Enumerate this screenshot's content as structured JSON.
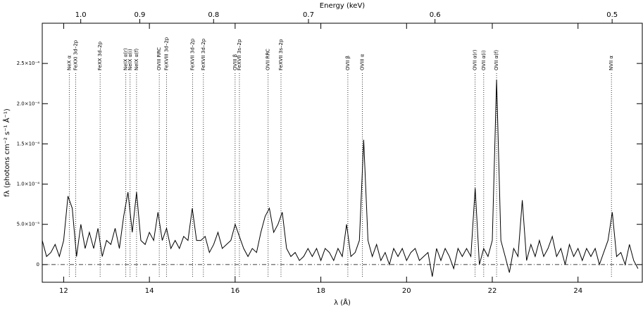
{
  "chart_data": {
    "type": "line",
    "xlabel": "λ (Å)",
    "ylabel": "fλ (photons cm⁻² s⁻¹ Å⁻¹)",
    "x2label": "Energy (keV)",
    "color": "#000000",
    "xlim": [
      11.5,
      25.5
    ],
    "xticks": [
      12,
      14,
      16,
      18,
      20,
      22,
      24
    ],
    "ylim": [
      -2.2e-05,
      0.0003
    ],
    "yticks": [
      0,
      {
        "value": 5e-05,
        "label": "5.0×10⁻⁵"
      },
      {
        "value": 0.0001,
        "label": "1.0×10⁻⁴"
      },
      {
        "value": 0.00015,
        "label": "1.5×10⁻⁴"
      },
      {
        "value": 0.0002,
        "label": "2.0×10⁻⁴"
      },
      {
        "value": 0.00025,
        "label": "2.5×10⁻⁴"
      }
    ],
    "x2ticks": [
      {
        "value": 1.0,
        "label": "1.0"
      },
      0.9,
      0.8,
      0.7,
      0.6,
      0.5
    ],
    "annotations": [
      {
        "label": "NeX α",
        "x": 12.13
      },
      {
        "label": "FeXXI 3d–2p",
        "x": 12.28
      },
      {
        "label": "FeXX 3d–2p",
        "x": 12.85
      },
      {
        "label": "NeIX α(r)",
        "x": 13.45
      },
      {
        "label": "NeIX α(i)",
        "x": 13.55
      },
      {
        "label": "NeIX α(f)",
        "x": 13.7
      },
      {
        "label": "OVIII RRC",
        "x": 14.23
      },
      {
        "label": "FeXVIII 3d–2p",
        "x": 14.4
      },
      {
        "label": "FeXVII 3d–2p",
        "x": 15.01
      },
      {
        "label": "FeXVII 3d–2p",
        "x": 15.26
      },
      {
        "label": "OVIII β",
        "x": 16.0
      },
      {
        "label": "FeXVII 3s–2p",
        "x": 16.1
      },
      {
        "label": "OVII RRC",
        "x": 16.77
      },
      {
        "label": "FeXVII 3s–2p",
        "x": 17.07
      },
      {
        "label": "OVII β",
        "x": 18.63
      },
      {
        "label": "OVIII α",
        "x": 18.97
      },
      {
        "label": "OVII α(r)",
        "x": 21.6
      },
      {
        "label": "OVII α(i)",
        "x": 21.8
      },
      {
        "label": "OVII α(f)",
        "x": 22.1
      },
      {
        "label": "NVII α",
        "x": 24.78
      }
    ],
    "x": [
      11.5,
      11.6,
      11.7,
      11.8,
      11.9,
      12.0,
      12.1,
      12.2,
      12.3,
      12.4,
      12.5,
      12.6,
      12.7,
      12.8,
      12.9,
      13.0,
      13.1,
      13.2,
      13.3,
      13.4,
      13.5,
      13.6,
      13.7,
      13.8,
      13.9,
      14.0,
      14.1,
      14.2,
      14.3,
      14.4,
      14.5,
      14.6,
      14.7,
      14.8,
      14.9,
      15.0,
      15.1,
      15.2,
      15.3,
      15.4,
      15.5,
      15.6,
      15.7,
      15.8,
      15.9,
      16.0,
      16.1,
      16.2,
      16.3,
      16.4,
      16.5,
      16.6,
      16.7,
      16.8,
      16.9,
      17.0,
      17.1,
      17.2,
      17.3,
      17.4,
      17.5,
      17.6,
      17.7,
      17.8,
      17.9,
      18.0,
      18.1,
      18.2,
      18.3,
      18.4,
      18.5,
      18.6,
      18.7,
      18.8,
      18.9,
      19.0,
      19.1,
      19.2,
      19.3,
      19.4,
      19.5,
      19.6,
      19.7,
      19.8,
      19.9,
      20.0,
      20.1,
      20.2,
      20.3,
      20.4,
      20.5,
      20.6,
      20.7,
      20.8,
      20.9,
      21.0,
      21.1,
      21.2,
      21.3,
      21.4,
      21.5,
      21.6,
      21.7,
      21.8,
      21.9,
      22.0,
      22.1,
      22.2,
      22.3,
      22.4,
      22.5,
      22.6,
      22.7,
      22.8,
      22.9,
      23.0,
      23.1,
      23.2,
      23.3,
      23.4,
      23.5,
      23.6,
      23.7,
      23.8,
      23.9,
      24.0,
      24.1,
      24.2,
      24.3,
      24.4,
      24.5,
      24.6,
      24.7,
      24.8,
      24.9,
      25.0,
      25.1,
      25.2,
      25.3,
      25.4
    ],
    "values": [
      3e-05,
      1e-05,
      1.5e-05,
      2.5e-05,
      1e-05,
      3e-05,
      8.5e-05,
      7e-05,
      1e-05,
      5e-05,
      2e-05,
      4e-05,
      2e-05,
      4.5e-05,
      1e-05,
      3e-05,
      2.5e-05,
      4.5e-05,
      2e-05,
      6e-05,
      9e-05,
      4e-05,
      9e-05,
      3e-05,
      2.5e-05,
      4e-05,
      3e-05,
      6.5e-05,
      3e-05,
      4.5e-05,
      2e-05,
      3e-05,
      2e-05,
      3.5e-05,
      3e-05,
      7e-05,
      3e-05,
      3e-05,
      3.5e-05,
      1.5e-05,
      2.5e-05,
      4e-05,
      2e-05,
      2.5e-05,
      3e-05,
      5e-05,
      3.5e-05,
      2e-05,
      1e-05,
      2e-05,
      1.5e-05,
      4e-05,
      6e-05,
      7e-05,
      4e-05,
      5e-05,
      6.5e-05,
      2e-05,
      1e-05,
      1.5e-05,
      5e-06,
      1e-05,
      2e-05,
      1e-05,
      2e-05,
      5e-06,
      2e-05,
      1.5e-05,
      5e-06,
      2e-05,
      1e-05,
      5e-05,
      1e-05,
      1.5e-05,
      3e-05,
      0.000155,
      3e-05,
      1e-05,
      2.5e-05,
      5e-06,
      1.5e-05,
      0,
      2e-05,
      1e-05,
      2e-05,
      5e-06,
      1.5e-05,
      2e-05,
      5e-06,
      1e-05,
      1.5e-05,
      -1.5e-05,
      2e-05,
      5e-06,
      2e-05,
      1e-05,
      -5e-06,
      2e-05,
      1e-05,
      2e-05,
      1e-05,
      9.5e-05,
      0,
      2e-05,
      1e-05,
      3e-05,
      0.00023,
      3e-05,
      1e-05,
      -1e-05,
      2e-05,
      1e-05,
      8e-05,
      5e-06,
      2.5e-05,
      1e-05,
      3e-05,
      1e-05,
      2e-05,
      3.5e-05,
      1e-05,
      2e-05,
      0,
      2.5e-05,
      1e-05,
      2e-05,
      5e-06,
      2e-05,
      1e-05,
      2e-05,
      0,
      1.5e-05,
      3e-05,
      6.5e-05,
      1e-05,
      1.5e-05,
      0,
      2.5e-05,
      5e-06,
      -5e-06
    ]
  }
}
